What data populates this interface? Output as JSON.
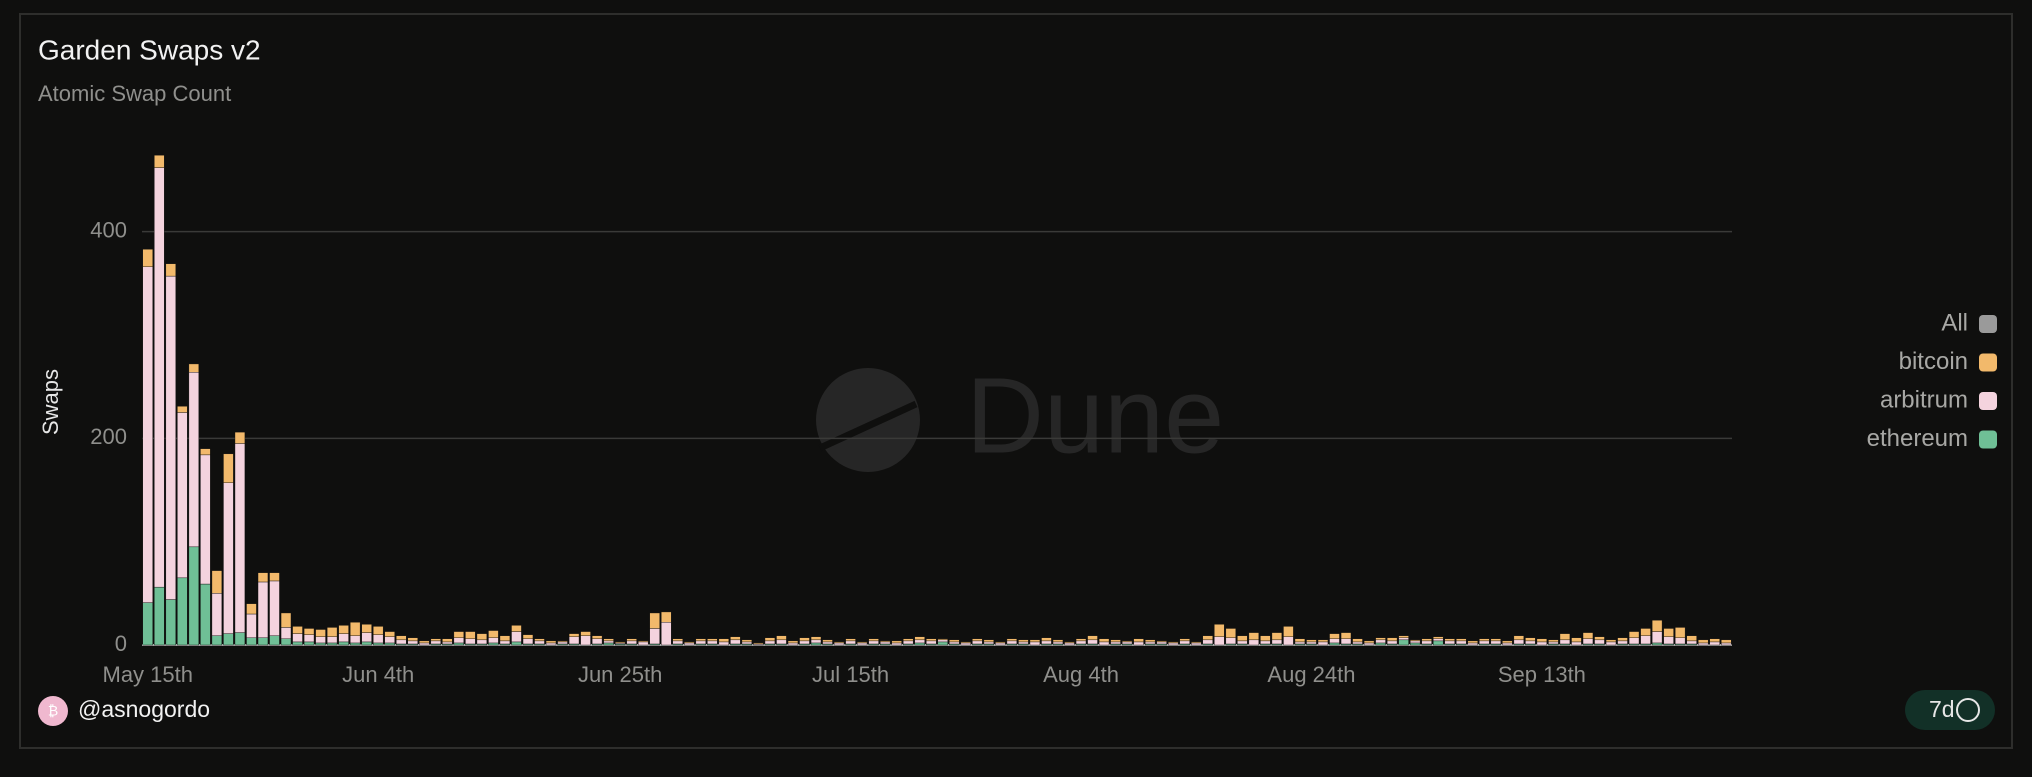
{
  "chart_data": {
    "type": "stacked_bar",
    "title": "Garden Swaps v2",
    "subtitle": "Atomic Swap Count",
    "y_label": "Swaps",
    "categories": [
      "May 15th",
      null,
      null,
      null,
      null,
      null,
      null,
      null,
      null,
      null,
      null,
      null,
      null,
      null,
      null,
      null,
      null,
      null,
      null,
      null,
      "Jun 4th",
      null,
      null,
      null,
      null,
      null,
      null,
      null,
      null,
      null,
      null,
      null,
      null,
      null,
      null,
      null,
      null,
      null,
      null,
      null,
      null,
      "Jun 25th",
      null,
      null,
      null,
      null,
      null,
      null,
      null,
      null,
      null,
      null,
      null,
      null,
      null,
      null,
      null,
      null,
      null,
      null,
      null,
      "Jul 15th",
      null,
      null,
      null,
      null,
      null,
      null,
      null,
      null,
      null,
      null,
      null,
      null,
      null,
      null,
      null,
      null,
      null,
      null,
      null,
      "Aug 4th",
      null,
      null,
      null,
      null,
      null,
      null,
      null,
      null,
      null,
      null,
      null,
      null,
      null,
      null,
      null,
      null,
      null,
      null,
      null,
      "Aug 24th",
      null,
      null,
      null,
      null,
      null,
      null,
      null,
      null,
      null,
      null,
      null,
      null,
      null,
      null,
      null,
      null,
      null,
      null,
      null,
      "Sep 13th",
      null,
      null,
      null,
      null,
      null,
      null,
      null,
      null,
      null,
      null,
      null,
      null,
      null,
      null,
      null,
      null
    ],
    "series": [
      {
        "name": "ethereum",
        "color": "#6fbf96",
        "values": [
          41,
          56,
          44,
          65,
          95,
          59,
          9,
          11,
          12,
          7,
          7,
          9,
          6,
          3,
          3,
          2,
          2,
          3,
          2,
          3,
          2,
          2,
          1,
          1,
          0,
          1,
          1,
          2,
          1,
          1,
          2,
          1,
          3,
          1,
          1,
          0,
          1,
          1,
          0,
          1,
          2,
          1,
          1,
          0,
          1,
          0,
          1,
          0,
          1,
          1,
          0,
          1,
          1,
          0,
          1,
          1,
          0,
          1,
          2,
          1,
          0,
          1,
          0,
          1,
          1,
          0,
          1,
          2,
          1,
          3,
          1,
          0,
          1,
          1,
          0,
          1,
          1,
          0,
          1,
          1,
          0,
          1,
          1,
          0,
          1,
          1,
          0,
          1,
          1,
          0,
          1,
          0,
          1,
          0,
          1,
          1,
          0,
          1,
          1,
          0,
          1,
          1,
          0,
          2,
          1,
          1,
          0,
          2,
          1,
          5,
          2,
          1,
          4,
          1,
          1,
          0,
          1,
          1,
          0,
          1,
          1,
          0,
          1,
          1,
          0,
          1,
          1,
          0,
          1,
          1,
          1,
          2,
          1,
          1,
          1,
          0,
          0,
          0
        ]
      },
      {
        "name": "arbitrum",
        "color": "#f4d3de",
        "values": [
          325,
          406,
          313,
          160,
          169,
          125,
          41,
          146,
          183,
          23,
          54,
          53,
          11,
          8,
          7,
          6,
          6,
          8,
          7,
          9,
          8,
          6,
          4,
          3,
          2,
          3,
          2,
          5,
          5,
          4,
          5,
          3,
          10,
          5,
          3,
          2,
          2,
          7,
          9,
          5,
          2,
          1,
          3,
          3,
          15,
          22,
          3,
          2,
          3,
          3,
          3,
          4,
          2,
          1,
          3,
          4,
          2,
          3,
          3,
          2,
          2,
          3,
          2,
          3,
          2,
          2,
          3,
          3,
          3,
          2,
          2,
          2,
          3,
          2,
          2,
          3,
          2,
          3,
          3,
          2,
          2,
          3,
          4,
          3,
          2,
          2,
          3,
          2,
          2,
          2,
          3,
          2,
          4,
          8,
          6,
          3,
          5,
          3,
          4,
          8,
          2,
          2,
          3,
          4,
          5,
          2,
          2,
          3,
          3,
          2,
          2,
          3,
          2,
          3,
          3,
          2,
          3,
          3,
          2,
          4,
          3,
          3,
          2,
          4,
          3,
          5,
          4,
          3,
          3,
          6,
          8,
          11,
          7,
          6,
          3,
          2,
          3,
          2
        ]
      },
      {
        "name": "bitcoin",
        "color": "#f2b96b",
        "values": [
          17,
          12,
          12,
          6,
          8,
          6,
          22,
          28,
          11,
          10,
          9,
          8,
          14,
          7,
          6,
          7,
          9,
          8,
          13,
          8,
          8,
          5,
          4,
          3,
          2,
          2,
          3,
          6,
          7,
          6,
          7,
          5,
          6,
          4,
          2,
          2,
          1,
          3,
          4,
          3,
          2,
          1,
          2,
          1,
          15,
          10,
          2,
          1,
          2,
          2,
          3,
          3,
          2,
          1,
          3,
          4,
          2,
          3,
          3,
          2,
          1,
          2,
          1,
          2,
          1,
          2,
          2,
          3,
          2,
          1,
          2,
          1,
          2,
          2,
          1,
          2,
          2,
          2,
          3,
          2,
          1,
          2,
          4,
          3,
          2,
          1,
          3,
          2,
          1,
          1,
          2,
          1,
          4,
          12,
          9,
          5,
          7,
          5,
          7,
          10,
          3,
          2,
          2,
          5,
          6,
          3,
          2,
          2,
          3,
          2,
          1,
          2,
          2,
          2,
          2,
          2,
          2,
          2,
          2,
          4,
          3,
          3,
          2,
          6,
          4,
          6,
          3,
          2,
          3,
          6,
          7,
          11,
          8,
          10,
          5,
          3,
          3,
          3
        ]
      }
    ],
    "legend_all": {
      "name": "All",
      "color": "#9a9a9a"
    },
    "ylim": [
      0,
      480
    ],
    "yticks": [
      0,
      200,
      400
    ],
    "grid": true,
    "legend": "right"
  },
  "watermark": "Dune",
  "footer": {
    "author": "@asnogordo",
    "badge": "7d"
  }
}
